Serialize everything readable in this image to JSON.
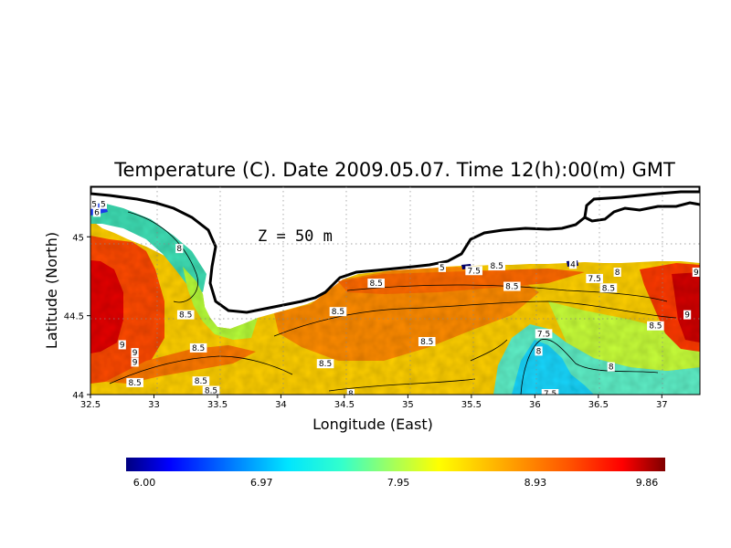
{
  "map": {
    "title": "Temperature (C). Date 2009.05.07. Time 12(h):00(m) GMT",
    "depth_label": "Z  =  50  m",
    "xlabel": "Longitude (East)",
    "ylabel": "Latitude (North)",
    "x_ticks": [
      "32.5",
      "33",
      "33.5",
      "34",
      "34.5",
      "35",
      "35.5",
      "36",
      "36.5",
      "37"
    ],
    "y_ticks": [
      "44",
      "44.5",
      "45"
    ],
    "lon_range": [
      32.5,
      37.3
    ],
    "lat_range": [
      44.0,
      45.32
    ],
    "contour_labels": [
      {
        "text": "5",
        "lon": 32.53,
        "lat": 45.2
      },
      {
        "text": "5",
        "lon": 32.6,
        "lat": 45.2
      },
      {
        "text": "6",
        "lon": 32.55,
        "lat": 45.15
      },
      {
        "text": "8",
        "lon": 33.2,
        "lat": 44.92
      },
      {
        "text": "8.5",
        "lon": 33.25,
        "lat": 44.5
      },
      {
        "text": "8.5",
        "lon": 33.35,
        "lat": 44.29
      },
      {
        "text": "9",
        "lon": 32.75,
        "lat": 44.31
      },
      {
        "text": "9",
        "lon": 32.85,
        "lat": 44.26
      },
      {
        "text": "9",
        "lon": 32.85,
        "lat": 44.2
      },
      {
        "text": "8.5",
        "lon": 32.85,
        "lat": 44.07
      },
      {
        "text": "8.5",
        "lon": 33.37,
        "lat": 44.08
      },
      {
        "text": "8.5",
        "lon": 33.45,
        "lat": 44.02
      },
      {
        "text": "8.5",
        "lon": 34.45,
        "lat": 44.52
      },
      {
        "text": "8.5",
        "lon": 34.35,
        "lat": 44.19
      },
      {
        "text": "8.5",
        "lon": 34.75,
        "lat": 44.7
      },
      {
        "text": "8",
        "lon": 34.55,
        "lat": 44.0
      },
      {
        "text": "8.5",
        "lon": 35.15,
        "lat": 44.33
      },
      {
        "text": "5",
        "lon": 35.27,
        "lat": 44.8
      },
      {
        "text": "7.5",
        "lon": 35.52,
        "lat": 44.78
      },
      {
        "text": "8.5",
        "lon": 35.7,
        "lat": 44.81
      },
      {
        "text": "8.5",
        "lon": 35.82,
        "lat": 44.68
      },
      {
        "text": "8",
        "lon": 36.03,
        "lat": 44.27
      },
      {
        "text": "7.5",
        "lon": 36.07,
        "lat": 44.38
      },
      {
        "text": "7.5",
        "lon": 36.12,
        "lat": 44.0
      },
      {
        "text": "4",
        "lon": 36.3,
        "lat": 44.82
      },
      {
        "text": "7.5",
        "lon": 36.47,
        "lat": 44.73
      },
      {
        "text": "8",
        "lon": 36.65,
        "lat": 44.77
      },
      {
        "text": "8.5",
        "lon": 36.58,
        "lat": 44.67
      },
      {
        "text": "8",
        "lon": 36.6,
        "lat": 44.17
      },
      {
        "text": "8.5",
        "lon": 36.95,
        "lat": 44.43
      },
      {
        "text": "9",
        "lon": 37.27,
        "lat": 44.77
      },
      {
        "text": "9",
        "lon": 37.2,
        "lat": 44.5
      }
    ]
  },
  "colorbar": {
    "tick_labels": [
      "6.00",
      "6.97",
      "7.95",
      "8.93",
      "9.86"
    ],
    "ticks": [
      6.0,
      6.97,
      7.95,
      8.93,
      9.86
    ],
    "range": [
      6.0,
      9.86
    ],
    "colors": [
      "#00007f",
      "#0000ff",
      "#007fff",
      "#00e5ff",
      "#33ffcc",
      "#aaff55",
      "#ffff00",
      "#ffaa00",
      "#ff5500",
      "#ff0000",
      "#7f0000"
    ]
  }
}
